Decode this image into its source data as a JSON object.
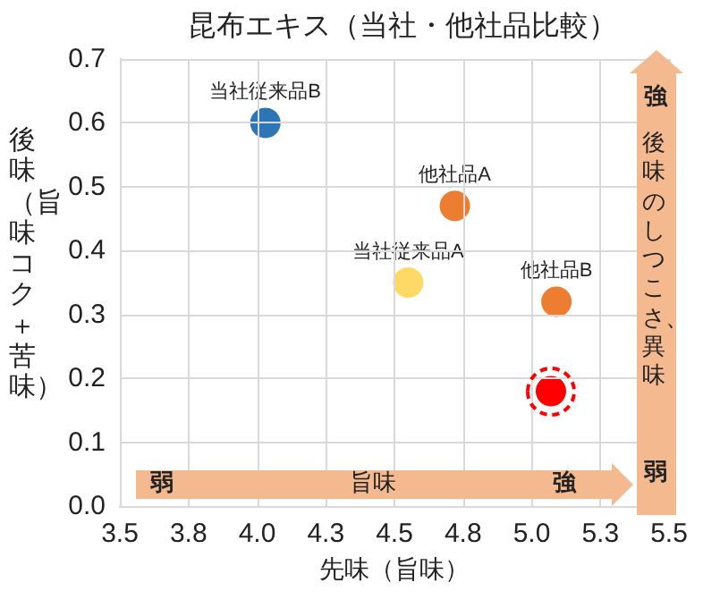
{
  "chart_data": {
    "type": "scatter",
    "title": "昆布エキス（当社・他社品比較）",
    "xlabel": "先味（旨味）",
    "ylabel": "後味（旨味コク＋苦味）",
    "xlim": [
      3.5,
      5.5
    ],
    "xticks": [
      3.5,
      {
        "value": 3.75,
        "label": "3.8"
      },
      {
        "value": 4,
        "label": "4.0"
      },
      {
        "value": 4.25,
        "label": "4.3"
      },
      4.5,
      {
        "value": 4.75,
        "label": "4.8"
      },
      {
        "value": 5,
        "label": "5.0"
      },
      {
        "value": 5.25,
        "label": "5.3"
      },
      5.5
    ],
    "ylim": [
      0,
      0.7
    ],
    "yticks": [
      {
        "value": 0,
        "label": "0.0"
      },
      0.1,
      0.2,
      0.3,
      0.4,
      0.5,
      0.6,
      0.7
    ],
    "grid": true,
    "legend": false,
    "marker": "circle",
    "series": [
      {
        "name": "当社従来品B",
        "color": "#2e75b6",
        "x": [
          4.03
        ],
        "values": [
          0.6
        ]
      },
      {
        "name": "他社品A",
        "color": "#ed7d31",
        "x": [
          4.72
        ],
        "values": [
          0.47
        ]
      },
      {
        "name": "当社従来品A",
        "color": "#ffd966",
        "x": [
          4.55
        ],
        "values": [
          0.35
        ]
      },
      {
        "name": "他社品B",
        "color": "#ed7d31",
        "x": [
          5.09
        ],
        "values": [
          0.32
        ]
      },
      {
        "color": "#ff0000",
        "x": [
          5.07
        ],
        "values": [
          0.18
        ]
      }
    ],
    "annotations": [
      "弱",
      "旨味",
      "強",
      "強",
      "後味のしつこさ、異味",
      "弱"
    ]
  }
}
